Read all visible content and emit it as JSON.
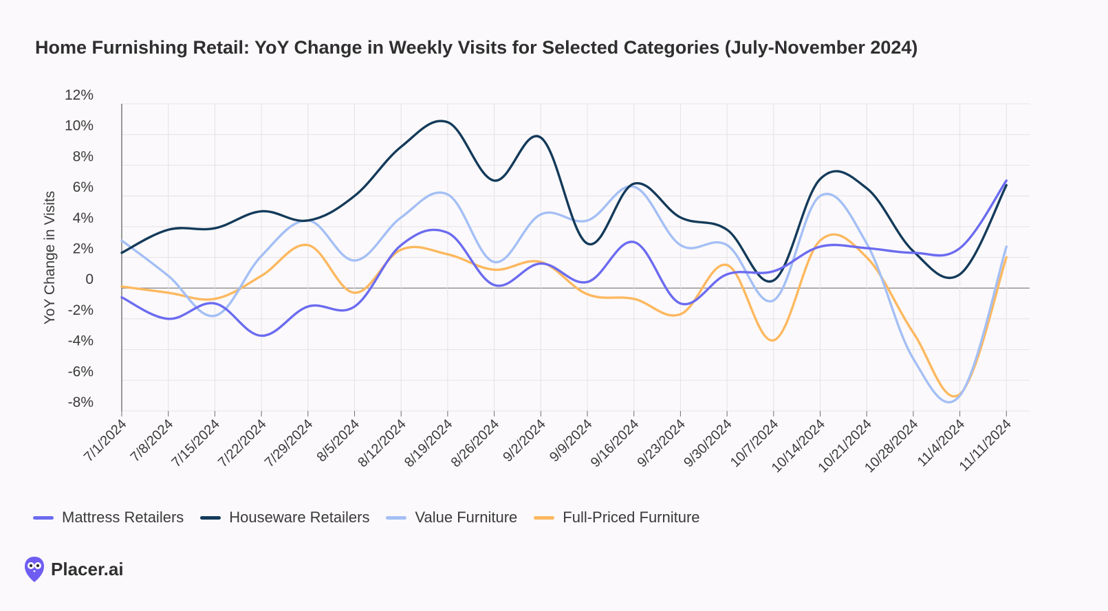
{
  "brand": {
    "name": "Placer.ai",
    "accent": "#6f5df2"
  },
  "chart_data": {
    "type": "line",
    "title": "Home Furnishing Retail: YoY Change in Weekly Visits for Selected Categories (July-November 2024)",
    "xlabel": "",
    "ylabel": "YoY Change in Visits",
    "ylim": [
      -8,
      12
    ],
    "yticks": [
      12,
      10,
      8,
      6,
      4,
      2,
      0,
      -2,
      -4,
      -6,
      -8
    ],
    "ytick_labels": [
      "12%",
      "10%",
      "8%",
      "6%",
      "4%",
      "2%",
      "0",
      "-2%",
      "-4%",
      "-6%",
      "-8%"
    ],
    "grid": true,
    "legend_position": "bottom-left",
    "categories": [
      "7/1/2024",
      "7/8/2024",
      "7/15/2024",
      "7/22/2024",
      "7/29/2024",
      "8/5/2024",
      "8/12/2024",
      "8/19/2024",
      "8/26/2024",
      "9/2/2024",
      "9/9/2024",
      "9/16/2024",
      "9/23/2024",
      "9/30/2024",
      "10/7/2024",
      "10/14/2024",
      "10/21/2024",
      "10/28/2024",
      "11/4/2024",
      "11/11/2024"
    ],
    "series": [
      {
        "name": "Mattress Retailers",
        "color": "#6b6bf0",
        "values": [
          -0.6,
          -2.0,
          -1.0,
          -3.1,
          -1.2,
          -1.2,
          2.8,
          3.6,
          0.2,
          1.6,
          0.4,
          3.0,
          -1.0,
          0.9,
          1.1,
          2.7,
          2.6,
          2.3,
          2.6,
          7.0
        ]
      },
      {
        "name": "Houseware Retailers",
        "color": "#143a5a",
        "values": [
          2.3,
          3.8,
          3.9,
          5.0,
          4.4,
          6.0,
          9.2,
          10.8,
          7.0,
          9.8,
          2.9,
          6.8,
          4.6,
          3.8,
          0.5,
          7.1,
          6.5,
          2.4,
          0.9,
          6.7
        ]
      },
      {
        "name": "Value Furniture",
        "color": "#a4bff5",
        "values": [
          3.1,
          0.8,
          -1.8,
          2.1,
          4.4,
          1.8,
          4.6,
          6.1,
          1.7,
          4.8,
          4.4,
          6.6,
          2.8,
          2.8,
          -0.8,
          6.0,
          2.9,
          -4.6,
          -7.0,
          2.7
        ]
      },
      {
        "name": "Full-Priced Furniture",
        "color": "#fdb85f",
        "values": [
          0.1,
          -0.3,
          -0.7,
          0.8,
          2.8,
          -0.3,
          2.5,
          2.2,
          1.2,
          1.7,
          -0.4,
          -0.7,
          -1.7,
          1.5,
          -3.4,
          3.1,
          2.0,
          -2.9,
          -6.9,
          2.0
        ]
      }
    ]
  }
}
